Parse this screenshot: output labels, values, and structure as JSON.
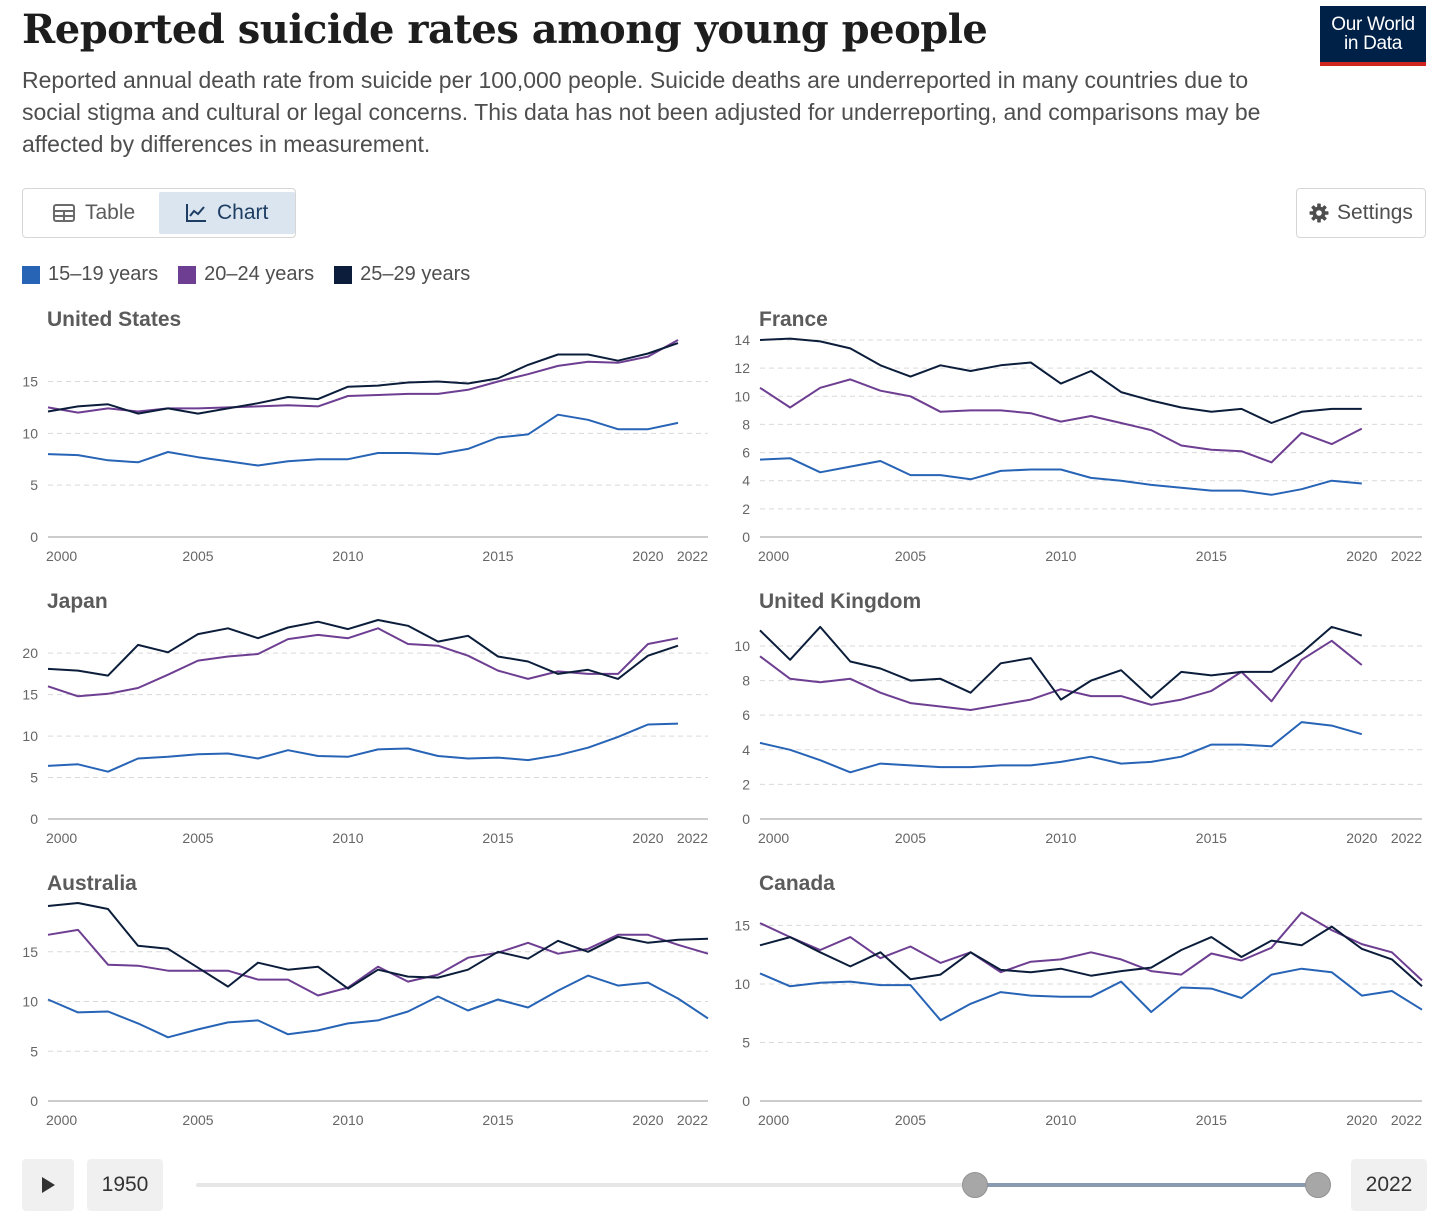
{
  "header": {
    "title": "Reported suicide rates among young people",
    "subtitle": "Reported annual death rate from suicide per 100,000 people. Suicide deaths are underreported in many countries due to social stigma and cultural or legal concerns. This data has not been adjusted for underreporting, and comparisons may be affected by differences in measurement.",
    "logo_line1": "Our World",
    "logo_line2": "in Data"
  },
  "toolbar": {
    "table_label": "Table",
    "chart_label": "Chart",
    "settings_label": "Settings"
  },
  "legend": [
    {
      "label": "15–19 years",
      "color": "#2764b6"
    },
    {
      "label": "20–24 years",
      "color": "#6d3e91"
    },
    {
      "label": "25–29 years",
      "color": "#0b1d3a"
    }
  ],
  "timeline": {
    "start_label": "1950",
    "end_label": "2022",
    "range_min": 1950,
    "range_max": 2022,
    "handle_start": 2000,
    "handle_end": 2022
  },
  "colors": {
    "s1519": "#2764b6",
    "s2024": "#6d3e91",
    "s2529": "#0b1d3a",
    "grid": "#d9d9d9"
  },
  "chart_data": [
    {
      "type": "line",
      "title": "United States",
      "xlim": [
        2000,
        2022
      ],
      "ylim": [
        0,
        19
      ],
      "yticks": [
        0,
        5,
        10,
        15
      ],
      "xticks": [
        2000,
        2005,
        2010,
        2015,
        2020,
        2022
      ],
      "x": [
        2000,
        2001,
        2002,
        2003,
        2004,
        2005,
        2006,
        2007,
        2008,
        2009,
        2010,
        2011,
        2012,
        2013,
        2014,
        2015,
        2016,
        2017,
        2018,
        2019,
        2020,
        2021
      ],
      "series": [
        {
          "name": "15–19 years",
          "values": [
            8.0,
            7.9,
            7.4,
            7.2,
            8.2,
            7.7,
            7.3,
            6.9,
            7.3,
            7.5,
            7.5,
            8.1,
            8.1,
            8.0,
            8.5,
            9.6,
            9.9,
            11.8,
            11.3,
            10.4,
            10.4,
            11.0
          ]
        },
        {
          "name": "20–24 years",
          "values": [
            12.5,
            12.0,
            12.4,
            12.1,
            12.4,
            12.4,
            12.5,
            12.6,
            12.7,
            12.6,
            13.6,
            13.7,
            13.8,
            13.8,
            14.2,
            15.0,
            15.7,
            16.5,
            16.9,
            16.8,
            17.4,
            19.0
          ]
        },
        {
          "name": "25–29 years",
          "values": [
            12.1,
            12.6,
            12.8,
            11.9,
            12.4,
            11.9,
            12.4,
            12.9,
            13.5,
            13.3,
            14.5,
            14.6,
            14.9,
            15.0,
            14.8,
            15.3,
            16.6,
            17.6,
            17.6,
            17.0,
            17.7,
            18.7
          ]
        }
      ]
    },
    {
      "type": "line",
      "title": "France",
      "xlim": [
        2000,
        2022
      ],
      "ylim": [
        0,
        14
      ],
      "yticks": [
        0,
        2,
        4,
        6,
        8,
        10,
        12,
        14
      ],
      "xticks": [
        2000,
        2005,
        2010,
        2015,
        2020,
        2022
      ],
      "x": [
        2000,
        2001,
        2002,
        2003,
        2004,
        2005,
        2006,
        2007,
        2008,
        2009,
        2010,
        2011,
        2012,
        2013,
        2014,
        2015,
        2016,
        2017,
        2018,
        2019,
        2020
      ],
      "series": [
        {
          "name": "15–19 years",
          "values": [
            5.5,
            5.6,
            4.6,
            5.0,
            5.4,
            4.4,
            4.4,
            4.1,
            4.7,
            4.8,
            4.8,
            4.2,
            4.0,
            3.7,
            3.5,
            3.3,
            3.3,
            3.0,
            3.4,
            4.0,
            3.8
          ]
        },
        {
          "name": "20–24 years",
          "values": [
            10.6,
            9.2,
            10.6,
            11.2,
            10.4,
            10.0,
            8.9,
            9.0,
            9.0,
            8.8,
            8.2,
            8.6,
            8.1,
            7.6,
            6.5,
            6.2,
            6.1,
            5.3,
            7.4,
            6.6,
            7.7
          ]
        },
        {
          "name": "25–29 years",
          "values": [
            14.0,
            14.1,
            13.9,
            13.4,
            12.2,
            11.4,
            12.2,
            11.8,
            12.2,
            12.4,
            10.9,
            11.8,
            10.3,
            9.7,
            9.2,
            8.9,
            9.1,
            8.1,
            8.9,
            9.1,
            9.1
          ]
        }
      ]
    },
    {
      "type": "line",
      "title": "Japan",
      "xlim": [
        2000,
        2022
      ],
      "ylim": [
        0,
        24
      ],
      "yticks": [
        0,
        5,
        10,
        15,
        20
      ],
      "xticks": [
        2000,
        2005,
        2010,
        2015,
        2020,
        2022
      ],
      "x": [
        2000,
        2001,
        2002,
        2003,
        2004,
        2005,
        2006,
        2007,
        2008,
        2009,
        2010,
        2011,
        2012,
        2013,
        2014,
        2015,
        2016,
        2017,
        2018,
        2019,
        2020,
        2021
      ],
      "series": [
        {
          "name": "15–19 years",
          "values": [
            6.4,
            6.6,
            5.7,
            7.3,
            7.5,
            7.8,
            7.9,
            7.3,
            8.3,
            7.6,
            7.5,
            8.4,
            8.5,
            7.6,
            7.3,
            7.4,
            7.1,
            7.7,
            8.6,
            9.9,
            11.4,
            11.5
          ]
        },
        {
          "name": "20–24 years",
          "values": [
            16.0,
            14.8,
            15.1,
            15.8,
            17.4,
            19.1,
            19.6,
            19.9,
            21.7,
            22.2,
            21.8,
            23.0,
            21.1,
            20.9,
            19.7,
            17.9,
            16.9,
            17.8,
            17.5,
            17.5,
            21.1,
            21.8
          ]
        },
        {
          "name": "25–29 years",
          "values": [
            18.1,
            17.9,
            17.3,
            21.0,
            20.1,
            22.3,
            23.0,
            21.8,
            23.1,
            23.8,
            22.9,
            24.0,
            23.3,
            21.4,
            22.1,
            19.6,
            19.0,
            17.5,
            18.0,
            16.9,
            19.7,
            20.9
          ]
        }
      ]
    },
    {
      "type": "line",
      "title": "United Kingdom",
      "xlim": [
        2000,
        2022
      ],
      "ylim": [
        0,
        11.5
      ],
      "yticks": [
        0,
        2,
        4,
        6,
        8,
        10
      ],
      "xticks": [
        2000,
        2005,
        2010,
        2015,
        2020,
        2022
      ],
      "x": [
        2000,
        2001,
        2002,
        2003,
        2004,
        2005,
        2006,
        2007,
        2008,
        2009,
        2010,
        2011,
        2012,
        2013,
        2014,
        2015,
        2016,
        2017,
        2018,
        2019,
        2020
      ],
      "series": [
        {
          "name": "15–19 years",
          "values": [
            4.4,
            4.0,
            3.4,
            2.7,
            3.2,
            3.1,
            3.0,
            3.0,
            3.1,
            3.1,
            3.3,
            3.6,
            3.2,
            3.3,
            3.6,
            4.3,
            4.3,
            4.2,
            5.6,
            5.4,
            4.9
          ]
        },
        {
          "name": "20–24 years",
          "values": [
            9.4,
            8.1,
            7.9,
            8.1,
            7.3,
            6.7,
            6.5,
            6.3,
            6.6,
            6.9,
            7.5,
            7.1,
            7.1,
            6.6,
            6.9,
            7.4,
            8.5,
            6.8,
            9.2,
            10.3,
            8.9
          ]
        },
        {
          "name": "25–29 years",
          "values": [
            10.9,
            9.2,
            11.1,
            9.1,
            8.7,
            8.0,
            8.1,
            7.3,
            9.0,
            9.3,
            6.9,
            8.0,
            8.6,
            7.0,
            8.5,
            8.3,
            8.5,
            8.5,
            9.6,
            11.1,
            10.6
          ]
        }
      ]
    },
    {
      "type": "line",
      "title": "Australia",
      "xlim": [
        2000,
        2022
      ],
      "ylim": [
        0,
        20
      ],
      "yticks": [
        0,
        5,
        10,
        15
      ],
      "xticks": [
        2000,
        2005,
        2010,
        2015,
        2020,
        2022
      ],
      "x": [
        2000,
        2001,
        2002,
        2003,
        2004,
        2005,
        2006,
        2007,
        2008,
        2009,
        2010,
        2011,
        2012,
        2013,
        2014,
        2015,
        2016,
        2017,
        2018,
        2019,
        2020,
        2021,
        2022
      ],
      "series": [
        {
          "name": "15–19 years",
          "values": [
            10.2,
            8.9,
            9.0,
            7.8,
            6.4,
            7.2,
            7.9,
            8.1,
            6.7,
            7.1,
            7.8,
            8.1,
            9.0,
            10.5,
            9.1,
            10.2,
            9.4,
            11.1,
            12.6,
            11.6,
            11.9,
            10.3,
            8.3
          ]
        },
        {
          "name": "20–24 years",
          "values": [
            16.7,
            17.2,
            13.7,
            13.6,
            13.1,
            13.1,
            13.1,
            12.2,
            12.2,
            10.6,
            11.4,
            13.5,
            12.0,
            12.7,
            14.4,
            14.9,
            15.9,
            14.8,
            15.3,
            16.7,
            16.7,
            15.7,
            14.8
          ]
        },
        {
          "name": "25–29 years",
          "values": [
            19.6,
            19.9,
            19.3,
            15.6,
            15.3,
            13.4,
            11.5,
            13.9,
            13.2,
            13.5,
            11.3,
            13.2,
            12.5,
            12.4,
            13.2,
            15.0,
            14.3,
            16.1,
            15.0,
            16.5,
            15.9,
            16.2,
            16.3
          ]
        }
      ]
    },
    {
      "type": "line",
      "title": "Canada",
      "xlim": [
        2000,
        2022
      ],
      "ylim": [
        0,
        17
      ],
      "yticks": [
        0,
        5,
        10,
        15
      ],
      "xticks": [
        2000,
        2005,
        2010,
        2015,
        2020,
        2022
      ],
      "x": [
        2000,
        2001,
        2002,
        2003,
        2004,
        2005,
        2006,
        2007,
        2008,
        2009,
        2010,
        2011,
        2012,
        2013,
        2014,
        2015,
        2016,
        2017,
        2018,
        2019,
        2020,
        2021,
        2022
      ],
      "series": [
        {
          "name": "15–19 years",
          "values": [
            10.9,
            9.8,
            10.1,
            10.2,
            9.9,
            9.9,
            6.9,
            8.3,
            9.3,
            9.0,
            8.9,
            8.9,
            10.2,
            7.6,
            9.7,
            9.6,
            8.8,
            10.8,
            11.3,
            11.0,
            9.0,
            9.4,
            7.8
          ]
        },
        {
          "name": "20–24 years",
          "values": [
            15.2,
            14.0,
            12.9,
            14.0,
            12.2,
            13.2,
            11.8,
            12.7,
            11.0,
            11.9,
            12.1,
            12.7,
            12.1,
            11.1,
            10.8,
            12.6,
            12.0,
            13.1,
            16.1,
            14.6,
            13.4,
            12.7,
            10.3
          ]
        },
        {
          "name": "25–29 years",
          "values": [
            13.3,
            14.0,
            12.7,
            11.5,
            12.7,
            10.4,
            10.8,
            12.7,
            11.2,
            11.0,
            11.3,
            10.7,
            11.1,
            11.4,
            12.9,
            14.0,
            12.3,
            13.7,
            13.3,
            14.9,
            13.0,
            12.1,
            9.8
          ]
        }
      ]
    }
  ]
}
